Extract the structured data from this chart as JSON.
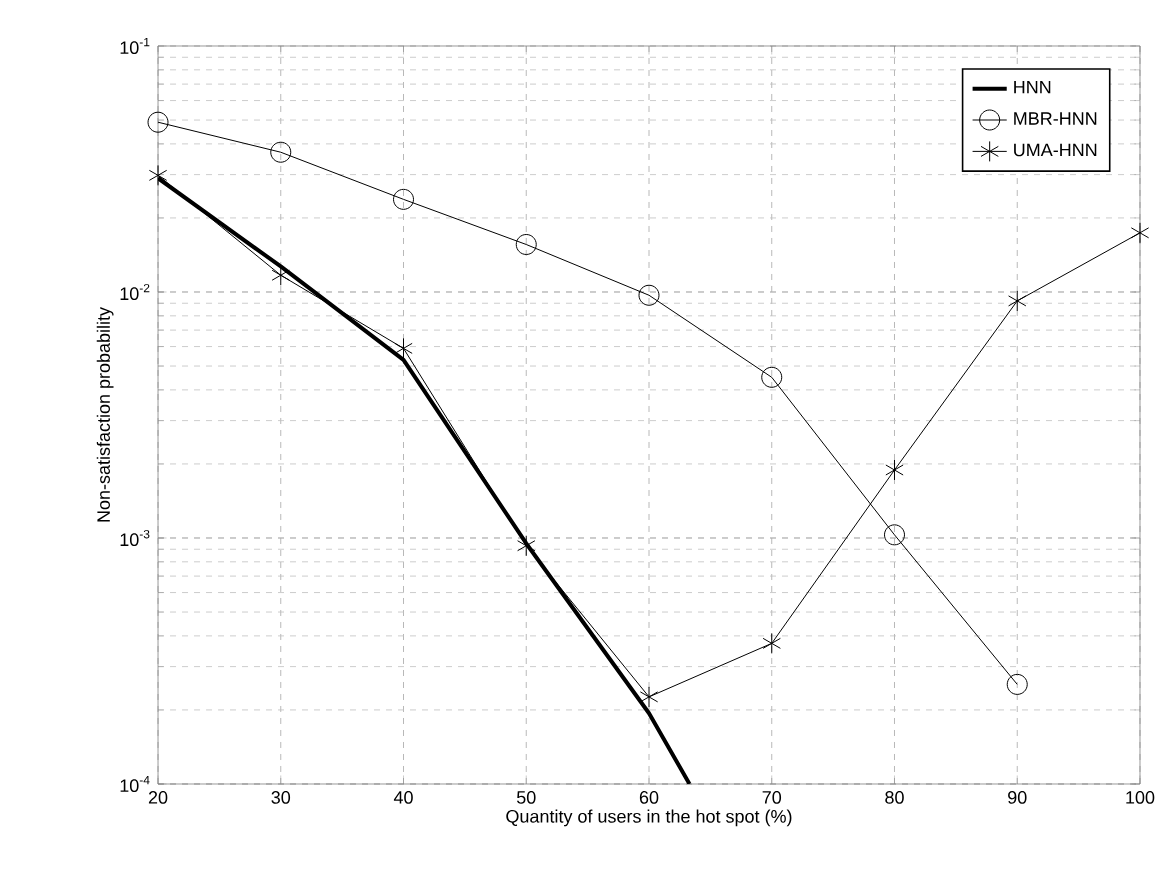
{
  "chart_data": {
    "type": "line",
    "xlabel": "Quantity of users in the hot spot (%)",
    "ylabel": "Non-satisfaction probability",
    "x": [
      20,
      30,
      40,
      50,
      60,
      70,
      80,
      90,
      100
    ],
    "series": [
      {
        "name": "HNN",
        "color": "#000000",
        "marker": "none",
        "x": [
          20,
          30,
          40,
          50,
          60,
          63.3
        ],
        "values": [
          0.029,
          0.0127,
          0.0053,
          0.00095,
          0.000194,
          0.0001
        ]
      },
      {
        "name": "MBR-HNN",
        "color": "#000000",
        "marker": "circle",
        "values": [
          0.049,
          0.037,
          0.0238,
          0.0156,
          0.0097,
          0.0045,
          0.00103,
          0.000254,
          null
        ]
      },
      {
        "name": "UMA-HNN",
        "color": "#000000",
        "marker": "cross",
        "values": [
          0.0298,
          0.0117,
          0.0059,
          0.00093,
          0.000226,
          0.000373,
          0.00189,
          0.0092,
          0.0174
        ]
      }
    ],
    "log": "y",
    "grid": true,
    "legend": "top right",
    "xlim": [
      20,
      100
    ],
    "xticks": [
      20,
      30,
      40,
      50,
      60,
      70,
      80,
      90,
      100
    ],
    "ylim": [
      0.0001,
      0.1
    ],
    "yticks": [
      {
        "value": 0.0001,
        "label": "10$^{-4}$"
      },
      {
        "value": 0.001,
        "label": "10$^{-3}$"
      },
      {
        "value": 0.01,
        "label": "10$^{-2}$"
      },
      {
        "value": 0.1,
        "label": "10$^{-1}$"
      }
    ]
  }
}
